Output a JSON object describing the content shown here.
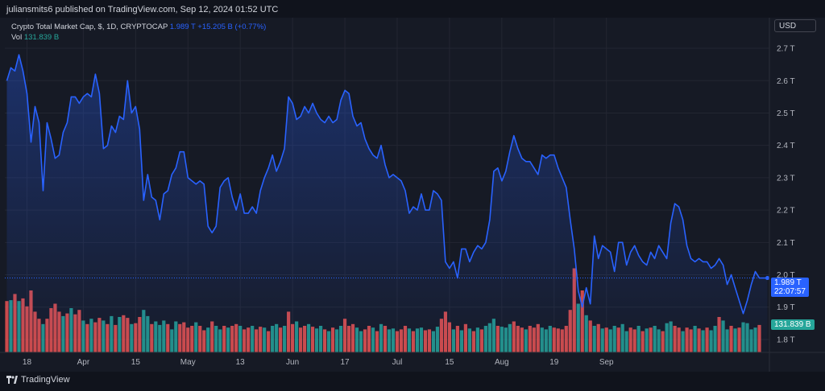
{
  "header": {
    "publisher": "juliansmits6 published on TradingView.com, Sep 12, 2024 01:52 UTC"
  },
  "legend": {
    "title": "Crypto Total Market Cap, $, 1D, CRYPTOCAP",
    "last": "1.989 T",
    "change": "+15.205 B (+0.77%)",
    "vol_label": "Vol",
    "vol_value": "131.839 B"
  },
  "currency": "USD",
  "price_tag": {
    "value": "1.989 T",
    "countdown": "22:07:57"
  },
  "vol_tag": "131.839 B",
  "footer": {
    "logo": "TradingView"
  },
  "colors": {
    "line": "#2962ff",
    "up": "#26a69a",
    "down": "#ef5350",
    "bg": "#161a25",
    "grid": "#232632"
  },
  "chart_data": {
    "type": "line",
    "title": "Crypto Total Market Cap, $, 1D, CRYPTOCAP",
    "ylim": [
      1.78,
      2.72
    ],
    "y_ticks": [
      "2.7 T",
      "2.6 T",
      "2.5 T",
      "2.4 T",
      "2.3 T",
      "2.2 T",
      "2.1 T",
      "2.0 T",
      "1.9 T",
      "1.8 T"
    ],
    "y_tick_values": [
      2.7,
      2.6,
      2.5,
      2.4,
      2.3,
      2.2,
      2.1,
      2.0,
      1.9,
      1.8
    ],
    "x_tick_labels": [
      "18",
      "Apr",
      "15",
      "May",
      "13",
      "Jun",
      "17",
      "Jul",
      "15",
      "Aug",
      "19",
      "Sep"
    ],
    "x_tick_index": [
      5,
      19,
      32,
      45,
      58,
      71,
      84,
      97,
      110,
      123,
      136,
      149
    ],
    "series": [
      {
        "values": [
          2.6,
          2.64,
          2.63,
          2.68,
          2.63,
          2.56,
          2.41,
          2.52,
          2.47,
          2.26,
          2.47,
          2.42,
          2.36,
          2.37,
          2.44,
          2.47,
          2.55,
          2.55,
          2.53,
          2.55,
          2.56,
          2.55,
          2.62,
          2.56,
          2.39,
          2.4,
          2.46,
          2.44,
          2.49,
          2.48,
          2.6,
          2.5,
          2.52,
          2.45,
          2.23,
          2.31,
          2.24,
          2.23,
          2.17,
          2.25,
          2.26,
          2.31,
          2.33,
          2.38,
          2.38,
          2.3,
          2.29,
          2.28,
          2.29,
          2.28,
          2.15,
          2.13,
          2.15,
          2.27,
          2.29,
          2.3,
          2.24,
          2.2,
          2.25,
          2.19,
          2.19,
          2.21,
          2.19,
          2.26,
          2.3,
          2.33,
          2.37,
          2.32,
          2.35,
          2.39,
          2.55,
          2.53,
          2.48,
          2.49,
          2.52,
          2.5,
          2.53,
          2.5,
          2.48,
          2.47,
          2.49,
          2.47,
          2.48,
          2.54,
          2.57,
          2.56,
          2.49,
          2.46,
          2.47,
          2.42,
          2.39,
          2.37,
          2.36,
          2.4,
          2.34,
          2.3,
          2.31,
          2.3,
          2.29,
          2.26,
          2.19,
          2.21,
          2.2,
          2.25,
          2.2,
          2.2,
          2.26,
          2.25,
          2.23,
          2.04,
          2.02,
          2.04,
          1.99,
          2.08,
          2.08,
          2.04,
          2.07,
          2.09,
          2.08,
          2.1,
          2.17,
          2.32,
          2.33,
          2.29,
          2.32,
          2.38,
          2.43,
          2.39,
          2.36,
          2.35,
          2.35,
          2.33,
          2.31,
          2.37,
          2.36,
          2.37,
          2.37,
          2.33,
          2.3,
          2.27,
          2.17,
          2.08,
          1.95,
          1.9,
          1.96,
          1.91,
          2.12,
          2.05,
          2.09,
          2.08,
          2.07,
          2.01,
          2.1,
          2.1,
          2.03,
          2.07,
          2.09,
          2.06,
          2.04,
          2.03,
          2.07,
          2.05,
          2.09,
          2.07,
          2.05,
          2.16,
          2.22,
          2.21,
          2.17,
          2.09,
          2.05,
          2.04,
          2.05,
          2.04,
          2.04,
          2.02,
          2.03,
          2.05,
          2.03,
          1.97,
          2.0,
          1.96,
          1.92,
          1.88,
          1.92,
          1.97,
          2.01,
          1.99,
          1.99,
          1.99
        ]
      }
    ],
    "volume": {
      "name": "Vol",
      "values": [
        0.58,
        0.59,
        0.66,
        0.58,
        0.61,
        0.52,
        0.7,
        0.46,
        0.38,
        0.32,
        0.38,
        0.5,
        0.55,
        0.46,
        0.41,
        0.44,
        0.5,
        0.43,
        0.48,
        0.36,
        0.32,
        0.38,
        0.34,
        0.39,
        0.36,
        0.32,
        0.41,
        0.31,
        0.4,
        0.42,
        0.39,
        0.32,
        0.33,
        0.4,
        0.48,
        0.41,
        0.32,
        0.35,
        0.31,
        0.36,
        0.32,
        0.26,
        0.35,
        0.32,
        0.34,
        0.28,
        0.3,
        0.34,
        0.3,
        0.25,
        0.28,
        0.35,
        0.3,
        0.26,
        0.3,
        0.28,
        0.3,
        0.32,
        0.3,
        0.26,
        0.28,
        0.3,
        0.26,
        0.29,
        0.28,
        0.24,
        0.3,
        0.32,
        0.28,
        0.3,
        0.46,
        0.32,
        0.35,
        0.28,
        0.3,
        0.32,
        0.29,
        0.27,
        0.3,
        0.26,
        0.24,
        0.28,
        0.26,
        0.3,
        0.38,
        0.3,
        0.32,
        0.28,
        0.24,
        0.26,
        0.3,
        0.28,
        0.24,
        0.32,
        0.3,
        0.26,
        0.27,
        0.24,
        0.26,
        0.3,
        0.27,
        0.24,
        0.27,
        0.28,
        0.25,
        0.26,
        0.24,
        0.29,
        0.38,
        0.46,
        0.34,
        0.26,
        0.3,
        0.25,
        0.32,
        0.27,
        0.24,
        0.28,
        0.26,
        0.3,
        0.33,
        0.38,
        0.3,
        0.29,
        0.28,
        0.32,
        0.35,
        0.3,
        0.28,
        0.26,
        0.3,
        0.28,
        0.32,
        0.28,
        0.26,
        0.3,
        0.28,
        0.27,
        0.26,
        0.3,
        0.48,
        0.95,
        0.55,
        0.7,
        0.42,
        0.36,
        0.3,
        0.32,
        0.27,
        0.28,
        0.26,
        0.3,
        0.28,
        0.32,
        0.24,
        0.28,
        0.26,
        0.3,
        0.24,
        0.27,
        0.28,
        0.3,
        0.26,
        0.24,
        0.33,
        0.35,
        0.3,
        0.28,
        0.24,
        0.28,
        0.26,
        0.3,
        0.27,
        0.25,
        0.28,
        0.25,
        0.3,
        0.4,
        0.36,
        0.26,
        0.3,
        0.27,
        0.28,
        0.34,
        0.33,
        0.26,
        0.28,
        0.31
      ],
      "up": [
        0,
        1,
        0,
        1,
        0,
        0,
        0,
        0,
        0,
        1,
        0,
        0,
        0,
        0,
        1,
        0,
        1,
        0,
        0,
        1,
        0,
        1,
        0,
        0,
        1,
        0,
        1,
        0,
        1,
        0,
        0,
        1,
        0,
        0,
        1,
        1,
        0,
        1,
        1,
        1,
        0,
        1,
        1,
        0,
        0,
        0,
        0,
        1,
        0,
        0,
        1,
        0,
        1,
        1,
        0,
        1,
        0,
        0,
        1,
        0,
        0,
        1,
        0,
        0,
        1,
        0,
        1,
        1,
        0,
        1,
        0,
        0,
        1,
        0,
        0,
        1,
        0,
        1,
        1,
        0,
        1,
        0,
        1,
        1,
        0,
        0,
        0,
        1,
        1,
        0,
        0,
        1,
        0,
        1,
        0,
        1,
        1,
        0,
        0,
        0,
        1,
        0,
        1,
        1,
        0,
        0,
        1,
        1,
        0,
        0,
        0,
        1,
        0,
        1,
        0,
        1,
        0,
        1,
        0,
        1,
        1,
        1,
        0,
        1,
        1,
        1,
        0,
        0,
        0,
        1,
        0,
        0,
        0,
        1,
        1,
        1,
        0,
        0,
        0,
        0,
        0,
        0,
        1,
        0,
        1,
        0,
        1,
        0,
        1,
        0,
        1,
        1,
        0,
        1,
        1,
        0,
        0,
        1,
        0,
        1,
        0,
        1,
        1,
        0,
        1,
        1,
        0,
        0,
        1,
        0,
        0,
        1,
        0,
        1,
        0,
        1,
        1,
        0,
        1,
        1,
        0,
        1,
        0,
        1,
        1,
        1,
        1
      ]
    }
  }
}
